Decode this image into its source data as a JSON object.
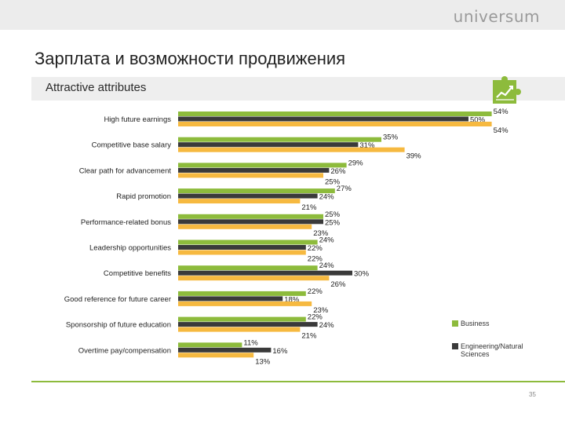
{
  "header": {
    "brand": "universum"
  },
  "title": "Зарплата и возможности продвижения",
  "subtitle": "Attractive attributes",
  "colors": {
    "business": "#8dbb3c",
    "engineering": "#3a3a3a",
    "third": "#f6b940",
    "accent": "#8dbb3c"
  },
  "badge_icon": "puzzle-chart-icon",
  "legend": {
    "business": "Business",
    "engineering": "Engineering/Natural Sciences"
  },
  "page_number": "35",
  "chart_data": {
    "type": "bar",
    "orientation": "horizontal",
    "categories": [
      "High future earnings",
      "Competitive base salary",
      "Clear path for advancement",
      "Rapid promotion",
      "Performance-related bonus",
      "Leadership opportunities",
      "Competitive benefits",
      "Good reference for future career",
      "Sponsorship of future education",
      "Overtime pay/compensation"
    ],
    "series": [
      {
        "name": "Business",
        "color": "#8dbb3c",
        "values": [
          54,
          35,
          29,
          27,
          25,
          24,
          24,
          22,
          22,
          11
        ]
      },
      {
        "name": "Engineering/Natural Sciences",
        "color": "#3a3a3a",
        "values": [
          50,
          31,
          26,
          24,
          25,
          22,
          30,
          18,
          24,
          16
        ]
      },
      {
        "color": "#f6b940",
        "values": [
          54,
          39,
          25,
          21,
          23,
          22,
          26,
          23,
          21,
          13
        ]
      }
    ],
    "labels": [
      [
        "54%",
        "35%",
        "29%",
        "27%",
        "25%",
        "24%",
        "24%",
        "22%",
        "22%",
        "11%"
      ],
      [
        "50%",
        "31%",
        "26%",
        "24%",
        "25%",
        "22%",
        "30%",
        "18%",
        "24%",
        "16%"
      ],
      [
        "54%",
        "39%",
        "25%",
        "21%",
        "23%",
        "22%",
        "26%",
        "23%",
        "21%",
        "13%"
      ]
    ],
    "xlim": [
      0,
      60
    ],
    "grid": false,
    "legend_position": "right"
  }
}
